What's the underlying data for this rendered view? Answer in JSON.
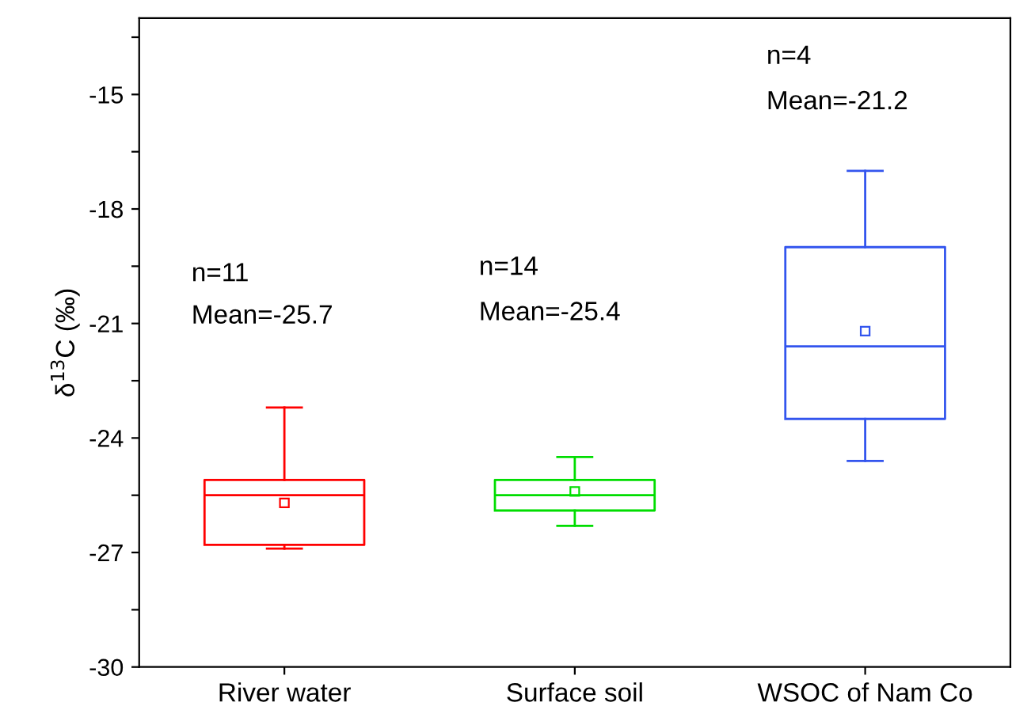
{
  "chart_data": {
    "type": "box",
    "ylabel": "δ$^{13}$C (‰)",
    "categories": [
      "River water",
      "Surface soil",
      "WSOC of Nam Co"
    ],
    "series": [
      {
        "color": "#ff0000",
        "boxes": [
          {
            "low": -26.9,
            "q1": -26.8,
            "median": -25.5,
            "q3": -25.1,
            "high": -23.2,
            "mean": -25.7
          },
          null,
          null
        ]
      },
      {
        "color": "#00dd00",
        "boxes": [
          null,
          {
            "low": -26.3,
            "q1": -25.9,
            "median": -25.5,
            "q3": -25.1,
            "high": -24.5,
            "mean": -25.4
          },
          null
        ]
      },
      {
        "color": "#3355ee",
        "boxes": [
          null,
          null,
          {
            "low": -24.6,
            "q1": -23.5,
            "median": -21.6,
            "q3": -19.0,
            "high": -17.0,
            "mean": -21.2
          }
        ]
      }
    ],
    "ylim": [
      -30,
      -13
    ],
    "yticks": [
      -30,
      {
        "value": -28.5,
        "label": null
      },
      -27,
      {
        "value": -25.5,
        "label": null
      },
      -24,
      {
        "value": -22.5,
        "label": null
      },
      -21,
      {
        "value": -19.5,
        "label": null
      },
      -18,
      {
        "value": -16.5,
        "label": null
      },
      -15,
      {
        "value": -13.5,
        "label": null
      }
    ],
    "annotations": [
      "n=11",
      "Mean=-25.7",
      "n=14",
      "Mean=-25.4",
      "n=4",
      "Mean=-21.2"
    ],
    "grid": false,
    "legend": false,
    "marker": "square"
  }
}
